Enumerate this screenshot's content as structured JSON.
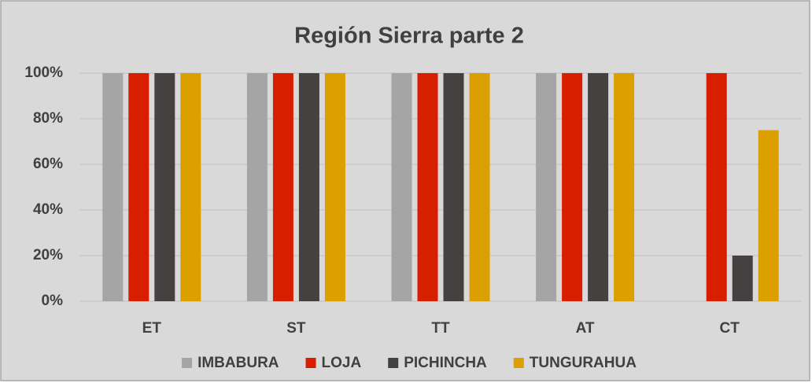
{
  "chart_data": {
    "type": "bar",
    "title": "Región Sierra parte 2",
    "categories": [
      "ET",
      "ST",
      "TT",
      "AT",
      "CT"
    ],
    "series": [
      {
        "name": "IMBABURA",
        "color": "#a5a5a5",
        "values": [
          100,
          100,
          100,
          100,
          0
        ]
      },
      {
        "name": "LOJA",
        "color": "#d71f00",
        "values": [
          100,
          100,
          100,
          100,
          100
        ]
      },
      {
        "name": "PICHINCHA",
        "color": "#444140",
        "values": [
          100,
          100,
          100,
          100,
          20
        ]
      },
      {
        "name": "TUNGURAHUA",
        "color": "#db9f00",
        "values": [
          100,
          100,
          100,
          100,
          75
        ]
      }
    ],
    "ylim": [
      0,
      100
    ],
    "yticks": [
      {
        "value": 0,
        "label": "0%"
      },
      {
        "value": 20,
        "label": "20%"
      },
      {
        "value": 40,
        "label": "40%"
      },
      {
        "value": 60,
        "label": "60%"
      },
      {
        "value": 80,
        "label": "80%"
      },
      {
        "value": 100,
        "label": "100%"
      }
    ],
    "grid": true,
    "legend": "bottom"
  }
}
